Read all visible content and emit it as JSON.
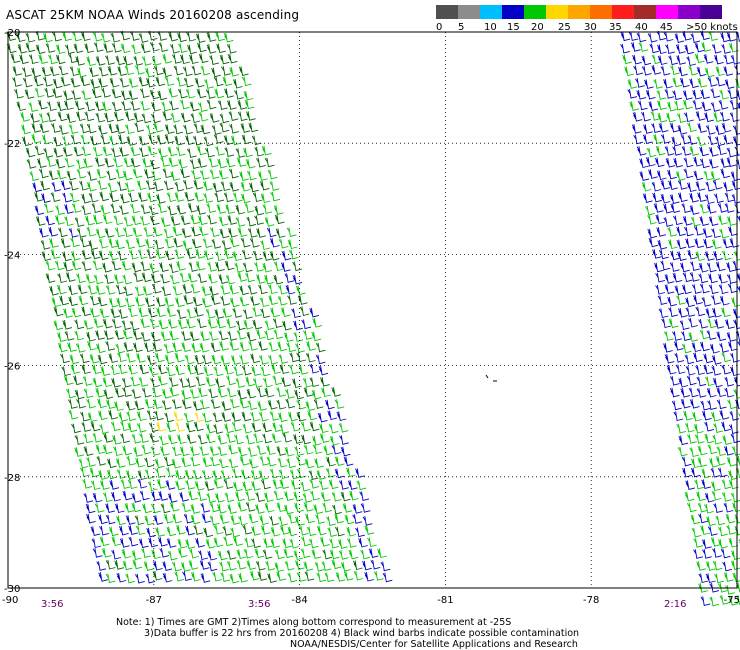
{
  "title": "ASCAT 25KM NOAA Winds 20160208 ascending",
  "colorbar": {
    "swatches": [
      "#505050",
      "#8c8c8c",
      "#00bfff",
      "#0000c8",
      "#00c800",
      "#ffd700",
      "#ffa500",
      "#ff6f00",
      "#ff1e1e",
      "#a52a2a",
      "#ff00ff",
      "#8b00c8",
      "#4b0096"
    ],
    "labels": [
      "0",
      "5",
      "10",
      "15",
      "20",
      "25",
      "30",
      "35",
      "40",
      "45",
      ">50 knots"
    ]
  },
  "map": {
    "lat_ticks": [
      "-20",
      "-22",
      "-24",
      "-26",
      "-28",
      "-30"
    ],
    "lon_ticks": [
      "-90",
      "-87",
      "-84",
      "-81",
      "-78",
      "-75"
    ],
    "lat_range": [
      -30,
      -20
    ],
    "lon_range": [
      -90,
      -75
    ],
    "grid": true,
    "time_labels": [
      "3:56",
      "3:56",
      "2:16"
    ],
    "barb_colors": {
      "light": "#00c800",
      "moderate": "#0000c8",
      "dark": "#006400",
      "strong": "#ffd700",
      "contaminated": "#000000"
    }
  },
  "notes": [
    "Note: 1) Times are GMT 2)Times along bottom correspond to measurement at -25S",
    "3)Data buffer is 22 hrs from 20160208 4) Black wind barbs indicate possible contamination",
    "NOAA/NESDIS/Center for Satellite Applications and Research"
  ]
}
